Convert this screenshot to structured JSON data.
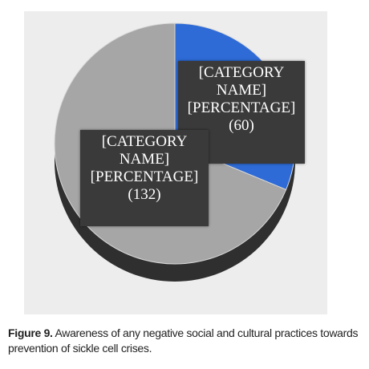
{
  "caption": {
    "label": "Figure 9.",
    "text": " Awareness of any negative social and cultural practices towards prevention of sickle cell crises."
  },
  "chart_data": {
    "type": "pie",
    "style": "3d",
    "title": "",
    "slices": [
      {
        "value": 60,
        "color": "#2e6bd6",
        "label_lines": [
          "[CATEGORY",
          "NAME]",
          "[PERCENTAGE]",
          "(60)"
        ]
      },
      {
        "value": 132,
        "color": "#a6a6a6",
        "label_lines": [
          "[CATEGORY",
          "NAME]",
          "[PERCENTAGE]",
          "(132)"
        ]
      }
    ],
    "legend": "none"
  }
}
